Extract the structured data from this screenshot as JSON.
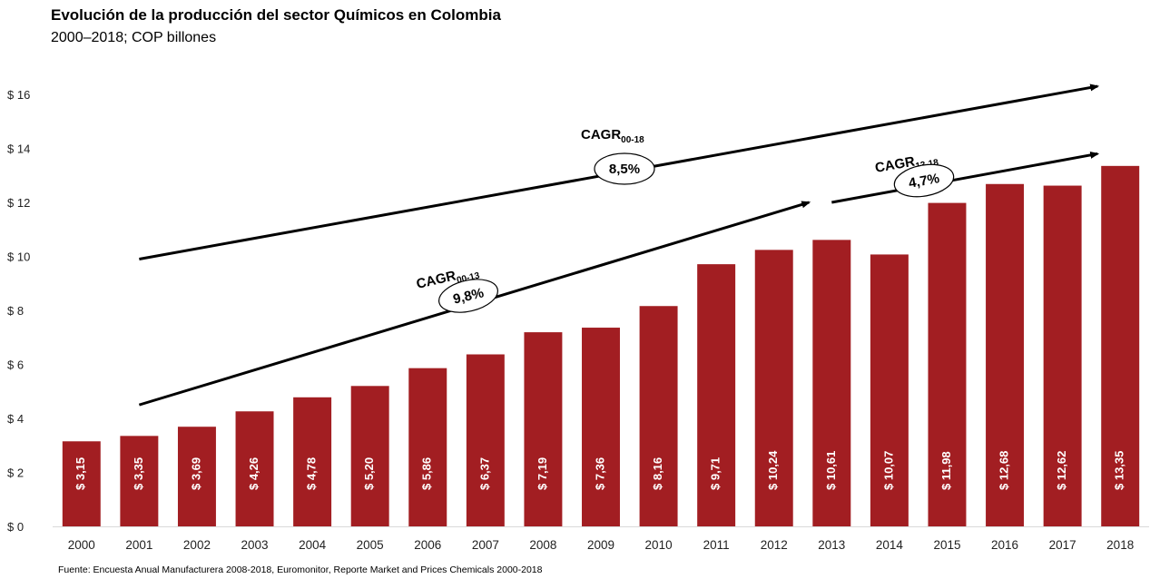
{
  "title": "Evolución de la producción del sector Químicos en Colombia",
  "subtitle": "2000–2018; COP billones",
  "source": "Fuente: Encuesta Anual Manufacturera 2008-2018, Euromonitor, Reporte Market and Prices Chemicals 2000-2018",
  "chart_data": {
    "type": "bar",
    "categories": [
      "2000",
      "2001",
      "2002",
      "2003",
      "2004",
      "2005",
      "2006",
      "2007",
      "2008",
      "2009",
      "2010",
      "2011",
      "2012",
      "2013",
      "2014",
      "2015",
      "2016",
      "2017",
      "2018"
    ],
    "values": [
      3.15,
      3.35,
      3.69,
      4.26,
      4.78,
      5.2,
      5.86,
      6.37,
      7.19,
      7.36,
      8.16,
      9.71,
      10.24,
      10.61,
      10.07,
      11.98,
      12.68,
      12.62,
      13.35
    ],
    "data_labels": [
      "$ 3,15",
      "$ 3,35",
      "$ 3,69",
      "$ 4,26",
      "$ 4,78",
      "$ 5,20",
      "$ 5,86",
      "$ 6,37",
      "$ 7,19",
      "$ 7,36",
      "$ 8,16",
      "$ 9,71",
      "$ 10,24",
      "$ 10,61",
      "$ 10,07",
      "$ 11,98",
      "$ 12,68",
      "$ 12,62",
      "$ 13,35"
    ],
    "ylim": [
      0,
      16
    ],
    "yticks": [
      0,
      2,
      4,
      6,
      8,
      10,
      12,
      14,
      16
    ],
    "ytick_labels": [
      "$ 0",
      "$ 2",
      "$ 4",
      "$ 6",
      "$ 8",
      "$ 10",
      "$ 12",
      "$ 14",
      "$ 16"
    ],
    "bar_color": "#A21E22",
    "grid": false,
    "annotations": [
      {
        "label": "CAGR",
        "subscript": "00-18",
        "value": "8,5%",
        "from": [
          "2001",
          9.9
        ],
        "to": [
          "2018",
          16.3
        ]
      },
      {
        "label": "CAGR",
        "subscript": "00-13",
        "value": "9,8%",
        "from": [
          "2001",
          4.5
        ],
        "to": [
          "2013",
          12.0
        ]
      },
      {
        "label": "CAGR",
        "subscript": "13-18",
        "value": "4,7%",
        "from": [
          "2013",
          12.0
        ],
        "to": [
          "2018",
          13.8
        ]
      }
    ]
  }
}
